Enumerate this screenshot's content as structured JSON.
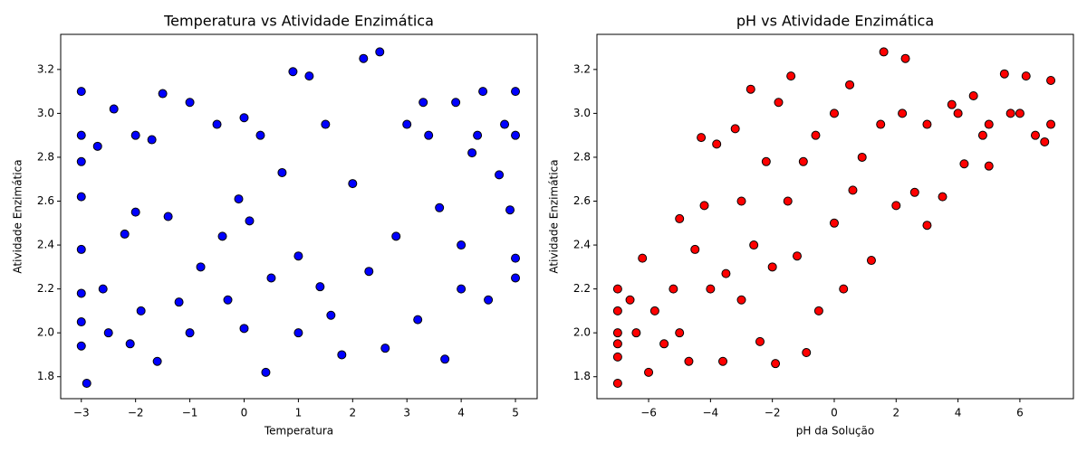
{
  "chart_data": [
    {
      "type": "scatter",
      "title": "Temperatura vs Atividade Enzimática",
      "xlabel": "Temperatura",
      "ylabel": "Atividade Enzimática",
      "color": "#0000ff",
      "edgecolor": "#000000",
      "x": [
        -3,
        -3,
        -3,
        -3,
        -3,
        -3,
        -3,
        -3,
        -2.9,
        -2.7,
        -2.6,
        -2.5,
        -2.4,
        -2.2,
        -2.1,
        -2,
        -2,
        -1.9,
        -1.7,
        -1.6,
        -1.5,
        -1.4,
        -1.2,
        -1,
        -1,
        -0.8,
        -0.5,
        -0.4,
        -0.3,
        -0.1,
        0,
        0,
        0.1,
        0.3,
        0.4,
        0.5,
        0.7,
        0.9,
        1,
        1,
        1.2,
        1.4,
        1.5,
        1.6,
        1.8,
        2,
        2.2,
        2.3,
        2.5,
        2.6,
        2.8,
        3,
        3.2,
        3.4,
        3.6,
        3.7,
        3.9,
        4,
        4,
        4.2,
        4.4,
        4.5,
        4.7,
        4.8,
        4.9,
        5,
        5,
        5,
        5,
        4.3,
        3.3
      ],
      "y": [
        3.1,
        2.9,
        2.78,
        2.62,
        2.38,
        2.18,
        2.05,
        1.94,
        1.77,
        2.85,
        2.2,
        2.0,
        3.02,
        2.45,
        1.95,
        2.9,
        2.55,
        2.1,
        2.88,
        1.87,
        3.09,
        2.53,
        2.14,
        3.05,
        2.0,
        2.3,
        2.95,
        2.44,
        2.15,
        2.61,
        2.98,
        2.02,
        2.51,
        2.9,
        1.82,
        2.25,
        2.73,
        3.19,
        2.35,
        2.0,
        3.17,
        2.21,
        2.95,
        2.08,
        1.9,
        2.68,
        3.25,
        2.28,
        3.28,
        1.93,
        2.44,
        2.95,
        2.06,
        2.9,
        2.57,
        1.88,
        3.05,
        2.4,
        2.2,
        2.82,
        3.1,
        2.15,
        2.72,
        2.95,
        2.56,
        3.1,
        2.9,
        2.34,
        2.25,
        2.9,
        3.05
      ],
      "xlim": [
        -3.38,
        5.4
      ],
      "ylim": [
        1.7,
        3.36
      ],
      "xticks": [
        {
          "value": -3,
          "label": "−3"
        },
        {
          "value": -2,
          "label": "−2"
        },
        {
          "value": -1,
          "label": "−1"
        },
        0,
        1,
        2,
        3,
        4,
        5
      ],
      "yticks": [
        1.8,
        {
          "value": 2,
          "label": "2.0"
        },
        2.2,
        2.4,
        2.6,
        2.8,
        {
          "value": 3,
          "label": "3.0"
        },
        3.2
      ]
    },
    {
      "type": "scatter",
      "title": "pH vs Atividade Enzimática",
      "xlabel": "pH da Solução",
      "ylabel": "Atividade Enzimática",
      "color": "#ff0000",
      "edgecolor": "#000000",
      "x": [
        -7,
        -7,
        -7,
        -7,
        -7,
        -7,
        -6.6,
        -6.4,
        -6.2,
        -6,
        -5.8,
        -5.5,
        -5.2,
        -5,
        -5,
        -4.7,
        -4.5,
        -4.3,
        -4.2,
        -4,
        -3.8,
        -3.6,
        -3.5,
        -3.2,
        -3,
        -3,
        -2.7,
        -2.6,
        -2.4,
        -2.2,
        -2,
        -1.9,
        -1.8,
        -1.5,
        -1.4,
        -1.2,
        -1,
        -0.9,
        -0.6,
        -0.5,
        0,
        0,
        0.3,
        0.5,
        0.6,
        0.9,
        1.2,
        1.5,
        1.6,
        2,
        2.2,
        2.3,
        2.6,
        3,
        3,
        3.5,
        4,
        4.2,
        4.5,
        5,
        5,
        5.5,
        6,
        6.2,
        6.5,
        7,
        7,
        6.8,
        5.7,
        4.8,
        3.8
      ],
      "y": [
        2.2,
        2.1,
        2.0,
        1.95,
        1.89,
        1.77,
        2.15,
        2.0,
        2.34,
        1.82,
        2.1,
        1.95,
        2.2,
        2.52,
        2.0,
        1.87,
        2.38,
        2.89,
        2.58,
        2.2,
        2.86,
        1.87,
        2.27,
        2.93,
        2.6,
        2.15,
        3.11,
        2.4,
        1.96,
        2.78,
        2.3,
        1.86,
        3.05,
        2.6,
        3.17,
        2.35,
        2.78,
        1.91,
        2.9,
        2.1,
        3.0,
        2.5,
        2.2,
        3.13,
        2.65,
        2.8,
        2.33,
        2.95,
        3.28,
        2.58,
        3.0,
        3.25,
        2.64,
        2.95,
        2.49,
        2.62,
        3.0,
        2.77,
        3.08,
        2.95,
        2.76,
        3.18,
        3.0,
        3.17,
        2.9,
        3.15,
        2.95,
        2.87,
        3.0,
        2.9,
        3.04
      ],
      "xlim": [
        -7.67,
        7.73
      ],
      "ylim": [
        1.7,
        3.36
      ],
      "xticks": [
        {
          "value": -6,
          "label": "−6"
        },
        {
          "value": -4,
          "label": "−4"
        },
        {
          "value": -2,
          "label": "−2"
        },
        0,
        2,
        4,
        6
      ],
      "yticks": [
        1.8,
        {
          "value": 2,
          "label": "2.0"
        },
        2.2,
        2.4,
        2.6,
        2.8,
        {
          "value": 3,
          "label": "3.0"
        },
        3.2
      ]
    }
  ]
}
